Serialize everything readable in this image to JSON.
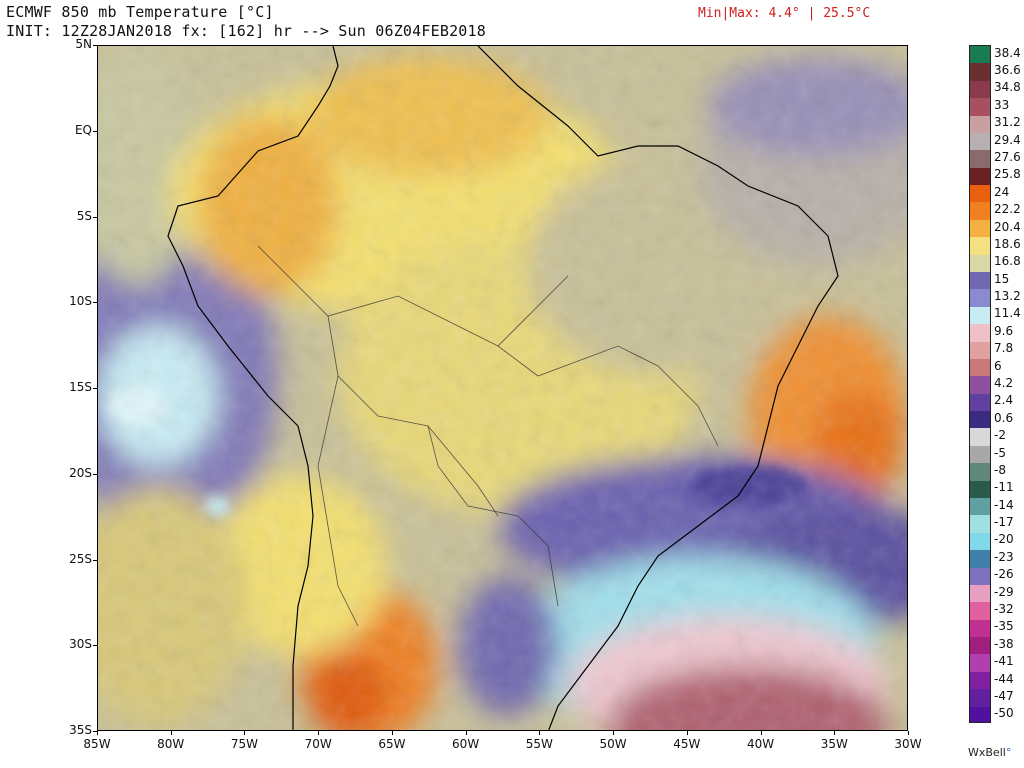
{
  "header": {
    "title": "ECMWF 850 mb Temperature [°C]",
    "init_line": "INIT: 12Z28JAN2018 fx: [162] hr --> Sun 06Z04FEB2018",
    "minmax": "Min|Max: 4.4° | 25.5°C"
  },
  "map": {
    "lat_labels": [
      "5N",
      "EQ",
      "5S",
      "10S",
      "15S",
      "20S",
      "25S",
      "30S",
      "35S"
    ],
    "lon_labels": [
      "85W",
      "80W",
      "75W",
      "70W",
      "65W",
      "60W",
      "55W",
      "50W",
      "45W",
      "40W",
      "35W",
      "30W"
    ],
    "field_colors": {
      "warm_orange": "#f0a030",
      "deep_orange": "#e86010",
      "yellow": "#f4e080",
      "olive_gray": "#b8b090",
      "gray": "#a8a8a8",
      "purple": "#7068b0",
      "deep_purple": "#5a50a0",
      "cyan_light": "#c8ecf4",
      "pink": "#f0c0c8",
      "maroon": "#a85060"
    }
  },
  "colorbar": {
    "labels": [
      "38.4",
      "36.6",
      "34.8",
      "33",
      "31.2",
      "29.4",
      "27.6",
      "25.8",
      "24",
      "22.2",
      "20.4",
      "18.6",
      "16.8",
      "15",
      "13.2",
      "11.4",
      "9.6",
      "7.8",
      "6",
      "4.2",
      "2.4",
      "0.6",
      "-2",
      "-5",
      "-8",
      "-11",
      "-14",
      "-17",
      "-20",
      "-23",
      "-26",
      "-29",
      "-32",
      "-35",
      "-38",
      "-41",
      "-44",
      "-47",
      "-50"
    ],
    "colors": [
      "#1a7a50",
      "#6a3030",
      "#8a3a4a",
      "#a85060",
      "#c8a0a0",
      "#b8b0b0",
      "#8a6a6a",
      "#6a2020",
      "#e86010",
      "#f08020",
      "#f4b040",
      "#f4e080",
      "#d8d8a8",
      "#7068b0",
      "#8a8ad0",
      "#c8ecf4",
      "#f0c0c8",
      "#e0a0a0",
      "#c87878",
      "#9050a0",
      "#6040a0",
      "#3a2a80",
      "#d8d8d8",
      "#a8a8a8",
      "#608878",
      "#2a5a4a",
      "#60a0a0",
      "#a0e0e0",
      "#80d8e8",
      "#4080a8",
      "#8070c0",
      "#e8a0c0",
      "#e060a0",
      "#c03090",
      "#a02080",
      "#b040b0",
      "#8020a0",
      "#6020a0",
      "#5010a0"
    ]
  },
  "brand": {
    "name": "WxBell",
    "dot": "°"
  }
}
